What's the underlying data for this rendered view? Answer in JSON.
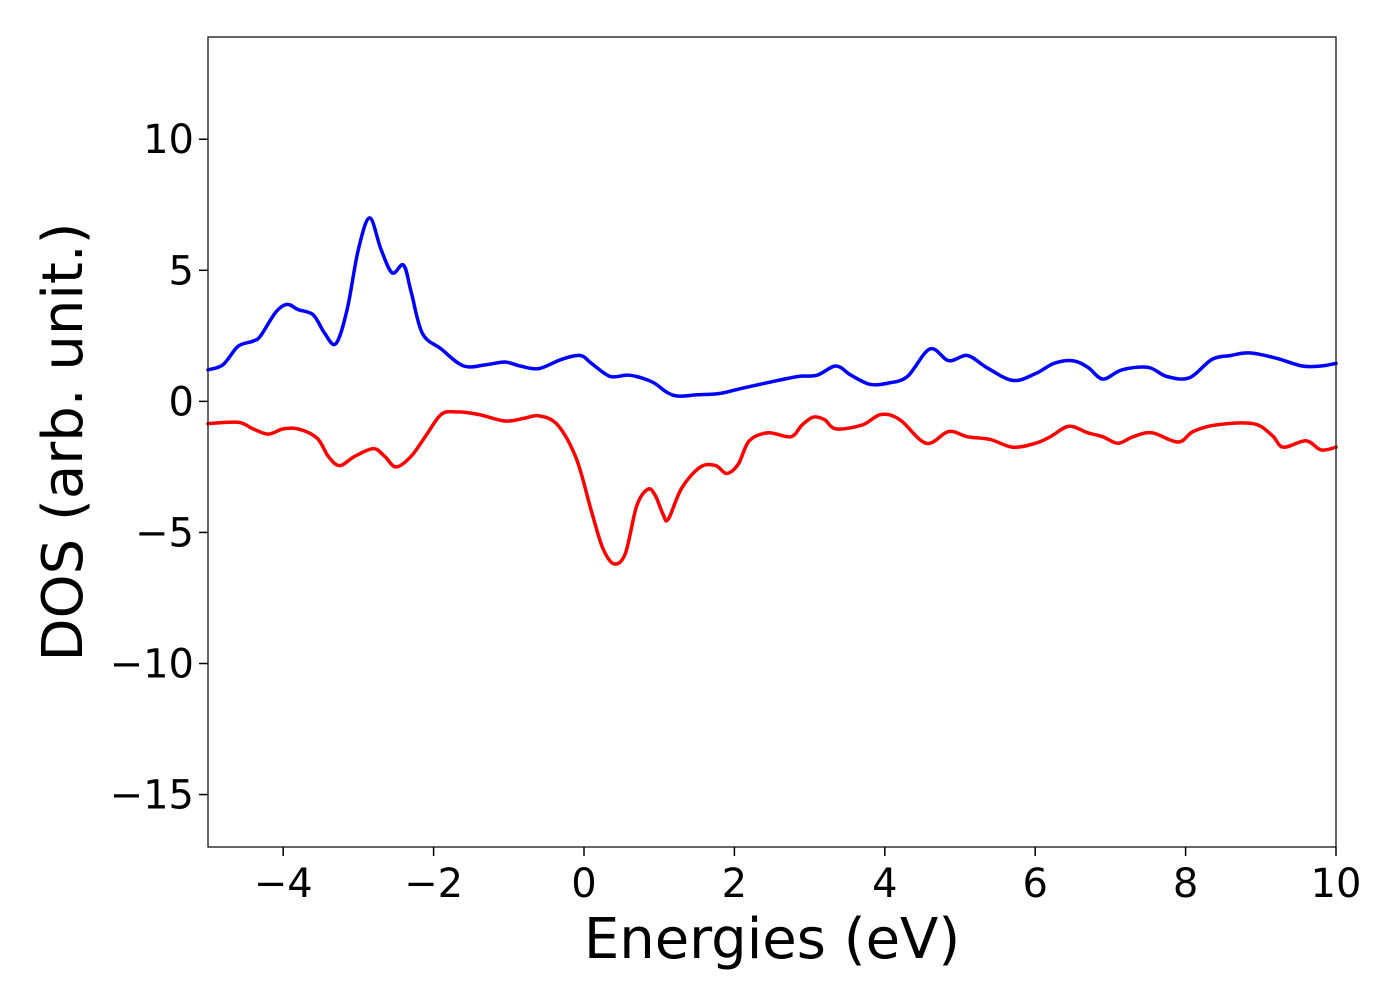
{
  "chart_data": {
    "type": "line",
    "xlabel": "Energies (eV)",
    "ylabel": "DOS (arb. unit.)",
    "xlim": [
      -5,
      10
    ],
    "ylim": [
      -17,
      13.9
    ],
    "grid": false,
    "x_ticks": [
      -4,
      -2,
      0,
      2,
      4,
      6,
      8,
      10
    ],
    "x_tick_labels": [
      "−4",
      "−2",
      "0",
      "2",
      "4",
      "6",
      "8",
      "10"
    ],
    "y_ticks": [
      10,
      5,
      0,
      -5,
      -10,
      -15
    ],
    "y_tick_labels": [
      "10",
      "5",
      "0",
      "−5",
      "−10",
      "−15"
    ],
    "series": [
      {
        "color": "#0000ff",
        "points": [
          [
            -5.0,
            1.2
          ],
          [
            -4.8,
            1.4
          ],
          [
            -4.6,
            2.1
          ],
          [
            -4.4,
            2.3
          ],
          [
            -4.3,
            2.5
          ],
          [
            -4.1,
            3.4
          ],
          [
            -3.95,
            3.7
          ],
          [
            -3.8,
            3.5
          ],
          [
            -3.6,
            3.3
          ],
          [
            -3.45,
            2.6
          ],
          [
            -3.3,
            2.2
          ],
          [
            -3.15,
            3.5
          ],
          [
            -3.0,
            5.8
          ],
          [
            -2.85,
            7.0
          ],
          [
            -2.7,
            5.8
          ],
          [
            -2.55,
            4.9
          ],
          [
            -2.4,
            5.2
          ],
          [
            -2.3,
            4.2
          ],
          [
            -2.15,
            2.6
          ],
          [
            -1.9,
            2.0
          ],
          [
            -1.6,
            1.35
          ],
          [
            -1.3,
            1.4
          ],
          [
            -1.05,
            1.5
          ],
          [
            -0.85,
            1.35
          ],
          [
            -0.6,
            1.25
          ],
          [
            -0.3,
            1.6
          ],
          [
            -0.05,
            1.75
          ],
          [
            0.1,
            1.45
          ],
          [
            0.35,
            0.95
          ],
          [
            0.6,
            1.0
          ],
          [
            0.9,
            0.75
          ],
          [
            1.1,
            0.35
          ],
          [
            1.25,
            0.2
          ],
          [
            1.5,
            0.25
          ],
          [
            1.8,
            0.3
          ],
          [
            2.1,
            0.5
          ],
          [
            2.5,
            0.75
          ],
          [
            2.85,
            0.95
          ],
          [
            3.1,
            1.0
          ],
          [
            3.35,
            1.35
          ],
          [
            3.55,
            1.0
          ],
          [
            3.8,
            0.65
          ],
          [
            4.05,
            0.7
          ],
          [
            4.3,
            0.95
          ],
          [
            4.6,
            2.0
          ],
          [
            4.85,
            1.55
          ],
          [
            5.1,
            1.75
          ],
          [
            5.35,
            1.3
          ],
          [
            5.7,
            0.8
          ],
          [
            6.0,
            1.05
          ],
          [
            6.25,
            1.45
          ],
          [
            6.5,
            1.55
          ],
          [
            6.7,
            1.3
          ],
          [
            6.9,
            0.85
          ],
          [
            7.15,
            1.2
          ],
          [
            7.5,
            1.3
          ],
          [
            7.75,
            0.95
          ],
          [
            8.05,
            0.9
          ],
          [
            8.35,
            1.6
          ],
          [
            8.6,
            1.75
          ],
          [
            8.85,
            1.85
          ],
          [
            9.2,
            1.65
          ],
          [
            9.55,
            1.35
          ],
          [
            9.8,
            1.35
          ],
          [
            10.0,
            1.45
          ]
        ]
      },
      {
        "color": "#ff0000",
        "points": [
          [
            -5.0,
            -0.85
          ],
          [
            -4.6,
            -0.8
          ],
          [
            -4.4,
            -1.05
          ],
          [
            -4.2,
            -1.25
          ],
          [
            -4.0,
            -1.05
          ],
          [
            -3.8,
            -1.05
          ],
          [
            -3.55,
            -1.4
          ],
          [
            -3.4,
            -2.1
          ],
          [
            -3.25,
            -2.45
          ],
          [
            -3.05,
            -2.1
          ],
          [
            -2.8,
            -1.8
          ],
          [
            -2.65,
            -2.1
          ],
          [
            -2.5,
            -2.5
          ],
          [
            -2.3,
            -2.1
          ],
          [
            -2.1,
            -1.3
          ],
          [
            -1.9,
            -0.5
          ],
          [
            -1.7,
            -0.4
          ],
          [
            -1.4,
            -0.5
          ],
          [
            -1.05,
            -0.75
          ],
          [
            -0.8,
            -0.65
          ],
          [
            -0.6,
            -0.55
          ],
          [
            -0.35,
            -0.9
          ],
          [
            -0.1,
            -2.2
          ],
          [
            0.1,
            -4.2
          ],
          [
            0.25,
            -5.6
          ],
          [
            0.4,
            -6.2
          ],
          [
            0.55,
            -5.8
          ],
          [
            0.7,
            -4.0
          ],
          [
            0.85,
            -3.35
          ],
          [
            0.95,
            -3.6
          ],
          [
            1.05,
            -4.3
          ],
          [
            1.12,
            -4.5
          ],
          [
            1.3,
            -3.3
          ],
          [
            1.55,
            -2.5
          ],
          [
            1.75,
            -2.45
          ],
          [
            1.9,
            -2.75
          ],
          [
            2.05,
            -2.4
          ],
          [
            2.2,
            -1.5
          ],
          [
            2.45,
            -1.2
          ],
          [
            2.75,
            -1.35
          ],
          [
            2.9,
            -0.9
          ],
          [
            3.05,
            -0.6
          ],
          [
            3.2,
            -0.7
          ],
          [
            3.35,
            -1.05
          ],
          [
            3.7,
            -0.9
          ],
          [
            3.95,
            -0.5
          ],
          [
            4.2,
            -0.7
          ],
          [
            4.55,
            -1.6
          ],
          [
            4.85,
            -1.15
          ],
          [
            5.1,
            -1.35
          ],
          [
            5.4,
            -1.45
          ],
          [
            5.7,
            -1.75
          ],
          [
            6.0,
            -1.6
          ],
          [
            6.2,
            -1.35
          ],
          [
            6.45,
            -0.95
          ],
          [
            6.7,
            -1.2
          ],
          [
            6.9,
            -1.35
          ],
          [
            7.1,
            -1.6
          ],
          [
            7.3,
            -1.35
          ],
          [
            7.55,
            -1.2
          ],
          [
            7.9,
            -1.55
          ],
          [
            8.1,
            -1.15
          ],
          [
            8.4,
            -0.9
          ],
          [
            8.9,
            -0.85
          ],
          [
            9.15,
            -1.3
          ],
          [
            9.3,
            -1.75
          ],
          [
            9.6,
            -1.5
          ],
          [
            9.8,
            -1.85
          ],
          [
            10.0,
            -1.75
          ]
        ]
      }
    ]
  }
}
